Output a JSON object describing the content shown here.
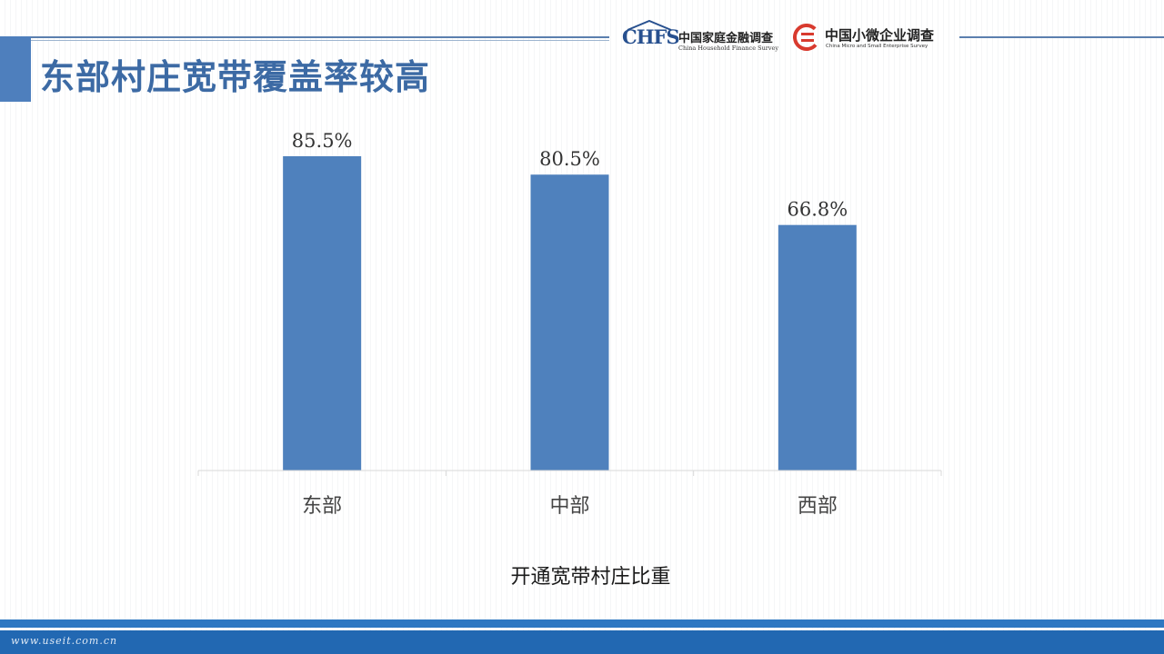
{
  "header": {
    "title": "东部村庄宽带覆盖率较高",
    "logo1": {
      "abbr": "CHFS",
      "cn": "中国家庭金融调查",
      "en": "China Household Finance Survey"
    },
    "logo2": {
      "cn": "中国小微企业调查",
      "en": "China Micro and Small Enterprise Survey"
    }
  },
  "colors": {
    "accent": "#4e7fbd",
    "bar": "#4f81bd",
    "title": "#3c6aa4",
    "footer_band": "#2268b2"
  },
  "chart_data": {
    "type": "bar",
    "categories": [
      "东部",
      "中部",
      "西部"
    ],
    "values": [
      85.5,
      80.5,
      66.8
    ],
    "data_labels": [
      "85.5%",
      "80.5%",
      "66.8%"
    ],
    "title": "",
    "xlabel": "开通宽带村庄比重",
    "ylabel": "",
    "ylim": [
      0,
      100
    ],
    "grid": false,
    "legend": "none"
  },
  "footer": {
    "url": "www.useit.com.cn"
  }
}
